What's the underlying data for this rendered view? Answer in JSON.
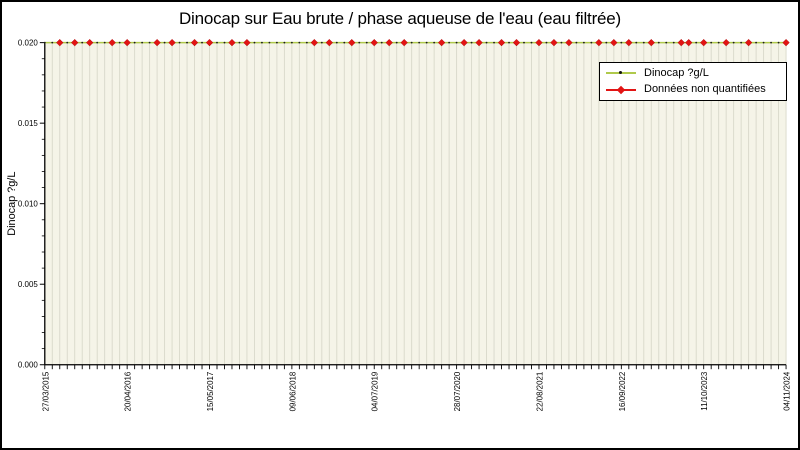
{
  "window": {
    "bg": "#ffffff",
    "border_color": "#000000"
  },
  "title": "Dinocap sur Eau brute / phase aqueuse de l'eau (eau filtrée)",
  "legend": {
    "items": [
      {
        "label": "Dinocap ?g/L"
      },
      {
        "label": "Données non quantifiées"
      }
    ]
  },
  "chart_data": {
    "type": "line",
    "title": "Dinocap sur Eau brute / phase aqueuse de l'eau (eau filtrée)",
    "xlabel": "",
    "ylabel": "Dinocap ?g/L",
    "ylim": [
      0.0,
      0.02
    ],
    "y_tick_labels": [
      "0.000",
      "0.005",
      "0.010",
      "0.015",
      "0.020"
    ],
    "y_minor_per_major": 5,
    "x_tick_labels": [
      "27/03/2015",
      "20/04/2016",
      "15/05/2017",
      "09/06/2018",
      "04/07/2019",
      "28/07/2020",
      "22/08/2021",
      "16/09/2022",
      "11/10/2023",
      "04/11/2024"
    ],
    "x_tick_indices": [
      0,
      11,
      22,
      33,
      44,
      55,
      66,
      77,
      88,
      99
    ],
    "n_points": 100,
    "grid": "vertical",
    "legend_position": "upper-right",
    "plot_bg": "#f5f4e8",
    "grid_color": "#d8d8ca",
    "series": [
      {
        "name": "Dinocap ?g/L",
        "type": "line+dot",
        "color": "#afc94b",
        "dot_color": "#1a1a1a",
        "constant_value": 0.02
      },
      {
        "name": "Données non quantifiées",
        "type": "diamond-markers",
        "color": "#e21414",
        "value": 0.02,
        "indices": [
          2,
          4,
          6,
          9,
          11,
          15,
          17,
          20,
          22,
          25,
          27,
          36,
          38,
          41,
          44,
          46,
          48,
          53,
          56,
          58,
          61,
          63,
          66,
          68,
          70,
          74,
          76,
          78,
          81,
          85,
          86,
          88,
          91,
          94,
          99
        ]
      }
    ]
  }
}
